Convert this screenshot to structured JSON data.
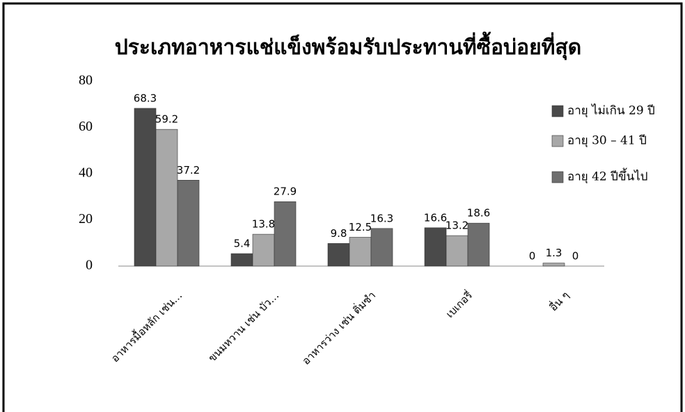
{
  "chart_data": {
    "type": "bar",
    "title": "ประเภทอาหารแช่แข็งพร้อมรับประทานที่ซื้อบ่อยที่สุด",
    "categories": [
      "อาหารมื้อหลัก เช่น…",
      "ขนมหวาน เช่น บัว…",
      "อาหารว่าง เช่น ติ่มซำ",
      "เบเกอรี่",
      "อื่น ๆ"
    ],
    "series": [
      {
        "name": "อายุ ไม่เกิน 29 ปี",
        "color": "#4a4a4a",
        "values": [
          68.3,
          5.4,
          9.8,
          16.6,
          0
        ]
      },
      {
        "name": "อายุ 30 – 41 ปี",
        "color": "#a8a8a8",
        "values": [
          59.2,
          13.8,
          12.5,
          13.2,
          1.3
        ]
      },
      {
        "name": "อายุ 42 ปีขึ้นไป",
        "color": "#6e6e6e",
        "values": [
          37.2,
          27.9,
          16.3,
          18.6,
          0
        ]
      }
    ],
    "ylim": [
      0,
      80
    ],
    "yticks": [
      0,
      20,
      40,
      60,
      80
    ],
    "grid": false,
    "legend": "right"
  }
}
